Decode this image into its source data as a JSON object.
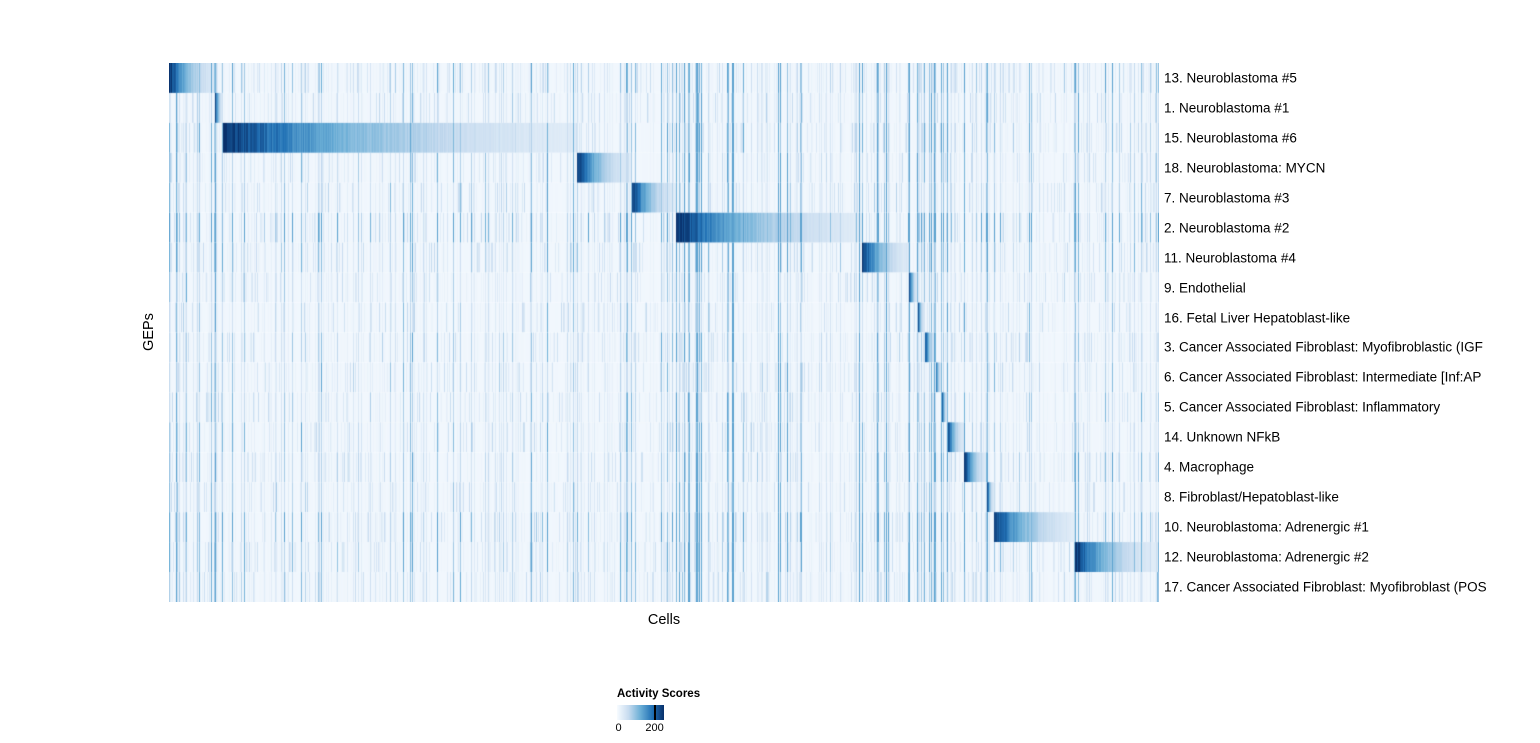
{
  "chart_data": {
    "type": "heatmap",
    "title": "",
    "xlabel": "Cells",
    "ylabel": "GEPs",
    "legend": {
      "title": "Activity Scores",
      "tick_labels": [
        "0",
        "200"
      ],
      "tick_values": [
        0,
        200
      ],
      "bar_max": 250
    },
    "colormap": [
      {
        "t": 0.0,
        "color": "#f7fbff"
      },
      {
        "t": 0.25,
        "color": "#c6dbef"
      },
      {
        "t": 0.5,
        "color": "#6baed6"
      },
      {
        "t": 0.75,
        "color": "#2171b5"
      },
      {
        "t": 1.0,
        "color": "#08306b"
      }
    ],
    "decay": 2.2,
    "base_value": 0.03,
    "noise_bands": [
      {
        "start": 0.0,
        "end": 0.055,
        "mult": 1.9
      },
      {
        "start": 0.055,
        "end": 0.512,
        "mult": 1.15
      },
      {
        "start": 0.512,
        "end": 0.7,
        "mult": 2.3
      },
      {
        "start": 0.7,
        "end": 0.75,
        "mult": 2.1
      },
      {
        "start": 0.75,
        "end": 0.838,
        "mult": 1.7
      },
      {
        "start": 0.905,
        "end": 0.995,
        "mult": 1.25
      }
    ],
    "rows": [
      {
        "label": "13. Neuroblastoma #5",
        "block_start": 0.0,
        "block_end": 0.049,
        "noise": 1.2
      },
      {
        "label": "1. Neuroblastoma #1",
        "block_start": 0.046,
        "block_end": 0.054,
        "noise": 0.9
      },
      {
        "label": "15. Neuroblastoma #6",
        "block_start": 0.054,
        "block_end": 0.412,
        "noise": 1.15
      },
      {
        "label": "18. Neuroblastoma: MYCN",
        "block_start": 0.412,
        "block_end": 0.467,
        "noise": 1.0
      },
      {
        "label": "7. Neuroblastoma #3",
        "block_start": 0.467,
        "block_end": 0.512,
        "noise": 1.0
      },
      {
        "label": "2. Neuroblastoma #2",
        "block_start": 0.512,
        "block_end": 0.7,
        "noise": 1.9
      },
      {
        "label": "11. Neuroblastoma #4",
        "block_start": 0.7,
        "block_end": 0.747,
        "noise": 1.15
      },
      {
        "label": "9. Endothelial",
        "block_start": 0.747,
        "block_end": 0.756,
        "noise": 0.8
      },
      {
        "label": "16. Fetal Liver Hepatoblast-like",
        "block_start": 0.756,
        "block_end": 0.763,
        "noise": 0.8
      },
      {
        "label": "3. Cancer Associated Fibroblast: Myofibroblastic (IGF",
        "block_start": 0.763,
        "block_end": 0.774,
        "noise": 0.9
      },
      {
        "label": "6. Cancer Associated Fibroblast: Intermediate [Inf:AP",
        "block_start": 0.774,
        "block_end": 0.78,
        "noise": 0.8
      },
      {
        "label": "5. Cancer Associated Fibroblast: Inflammatory",
        "block_start": 0.78,
        "block_end": 0.786,
        "noise": 0.9
      },
      {
        "label": "14. Unknown NFkB",
        "block_start": 0.786,
        "block_end": 0.803,
        "noise": 1.0
      },
      {
        "label": "4. Macrophage",
        "block_start": 0.803,
        "block_end": 0.826,
        "noise": 1.1
      },
      {
        "label": "8. Fibroblast/Hepatoblast-like",
        "block_start": 0.826,
        "block_end": 0.833,
        "noise": 0.85
      },
      {
        "label": "10. Neuroblastoma: Adrenergic #1",
        "block_start": 0.833,
        "block_end": 0.915,
        "noise": 1.45
      },
      {
        "label": "12. Neuroblastoma: Adrenergic #2",
        "block_start": 0.915,
        "block_end": 0.997,
        "noise": 1.3
      },
      {
        "label": "17. Cancer Associated Fibroblast: Myofibroblast (POS",
        "block_start": 0.997,
        "block_end": 1.0,
        "noise": 1.0
      }
    ]
  }
}
